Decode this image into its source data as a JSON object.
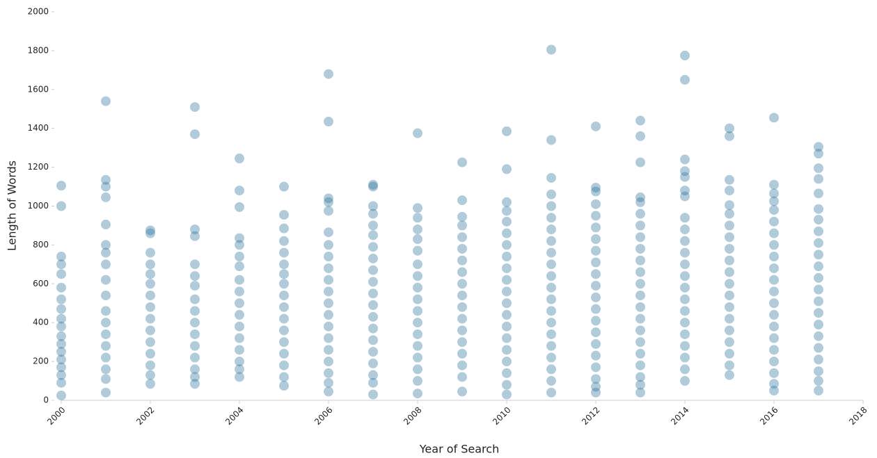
{
  "chart_data": {
    "type": "scatter",
    "x_label": "Year of Search",
    "y_label": "Length of Words",
    "color": "#1f6a96",
    "xlim": [
      2000,
      2018
    ],
    "xticks": [
      2000,
      2002,
      2004,
      2006,
      2008,
      2010,
      2012,
      2014,
      2016,
      2018
    ],
    "ylim": [
      0,
      2000
    ],
    "yticks": [
      0,
      200,
      400,
      600,
      800,
      1000,
      1200,
      1400,
      1600,
      1800,
      2000
    ],
    "grid": false,
    "x": [
      2000,
      2000,
      2000,
      2000,
      2000,
      2000,
      2000,
      2000,
      2000,
      2000,
      2000,
      2000,
      2000,
      2000,
      2000,
      2000,
      2000,
      2000,
      2001,
      2001,
      2001,
      2001,
      2001,
      2001,
      2001,
      2001,
      2001,
      2001,
      2001,
      2001,
      2001,
      2001,
      2001,
      2001,
      2001,
      2001,
      2002,
      2002,
      2002,
      2002,
      2002,
      2002,
      2002,
      2002,
      2002,
      2002,
      2002,
      2002,
      2002,
      2002,
      2002,
      2003,
      2003,
      2003,
      2003,
      2003,
      2003,
      2003,
      2003,
      2003,
      2003,
      2003,
      2003,
      2003,
      2003,
      2003,
      2003,
      2004,
      2004,
      2004,
      2004,
      2004,
      2004,
      2004,
      2004,
      2004,
      2004,
      2004,
      2004,
      2004,
      2004,
      2004,
      2004,
      2004,
      2005,
      2005,
      2005,
      2005,
      2005,
      2005,
      2005,
      2005,
      2005,
      2005,
      2005,
      2005,
      2005,
      2005,
      2005,
      2005,
      2005,
      2006,
      2006,
      2006,
      2006,
      2006,
      2006,
      2006,
      2006,
      2006,
      2006,
      2006,
      2006,
      2006,
      2006,
      2006,
      2006,
      2006,
      2006,
      2006,
      2006,
      2007,
      2007,
      2007,
      2007,
      2007,
      2007,
      2007,
      2007,
      2007,
      2007,
      2007,
      2007,
      2007,
      2007,
      2007,
      2007,
      2007,
      2007,
      2007,
      2007,
      2008,
      2008,
      2008,
      2008,
      2008,
      2008,
      2008,
      2008,
      2008,
      2008,
      2008,
      2008,
      2008,
      2008,
      2008,
      2008,
      2008,
      2008,
      2009,
      2009,
      2009,
      2009,
      2009,
      2009,
      2009,
      2009,
      2009,
      2009,
      2009,
      2009,
      2009,
      2009,
      2009,
      2009,
      2009,
      2009,
      2010,
      2010,
      2010,
      2010,
      2010,
      2010,
      2010,
      2010,
      2010,
      2010,
      2010,
      2010,
      2010,
      2010,
      2010,
      2010,
      2010,
      2010,
      2010,
      2010,
      2011,
      2011,
      2011,
      2011,
      2011,
      2011,
      2011,
      2011,
      2011,
      2011,
      2011,
      2011,
      2011,
      2011,
      2011,
      2011,
      2011,
      2011,
      2011,
      2011,
      2011,
      2012,
      2012,
      2012,
      2012,
      2012,
      2012,
      2012,
      2012,
      2012,
      2012,
      2012,
      2012,
      2012,
      2012,
      2012,
      2012,
      2012,
      2012,
      2012,
      2012,
      2012,
      2013,
      2013,
      2013,
      2013,
      2013,
      2013,
      2013,
      2013,
      2013,
      2013,
      2013,
      2013,
      2013,
      2013,
      2013,
      2013,
      2013,
      2013,
      2013,
      2013,
      2013,
      2013,
      2014,
      2014,
      2014,
      2014,
      2014,
      2014,
      2014,
      2014,
      2014,
      2014,
      2014,
      2014,
      2014,
      2014,
      2014,
      2014,
      2014,
      2014,
      2014,
      2014,
      2014,
      2014,
      2015,
      2015,
      2015,
      2015,
      2015,
      2015,
      2015,
      2015,
      2015,
      2015,
      2015,
      2015,
      2015,
      2015,
      2015,
      2015,
      2015,
      2015,
      2015,
      2015,
      2016,
      2016,
      2016,
      2016,
      2016,
      2016,
      2016,
      2016,
      2016,
      2016,
      2016,
      2016,
      2016,
      2016,
      2016,
      2016,
      2016,
      2016,
      2016,
      2016,
      2016,
      2017,
      2017,
      2017,
      2017,
      2017,
      2017,
      2017,
      2017,
      2017,
      2017,
      2017,
      2017,
      2017,
      2017,
      2017,
      2017,
      2017,
      2017,
      2017,
      2017,
      2017,
      2017
    ],
    "values": [
      1105,
      1000,
      740,
      700,
      650,
      580,
      520,
      470,
      420,
      380,
      330,
      290,
      250,
      210,
      170,
      130,
      90,
      25,
      1540,
      1135,
      1100,
      1045,
      905,
      800,
      760,
      700,
      620,
      540,
      460,
      400,
      340,
      280,
      220,
      160,
      110,
      40,
      875,
      860,
      760,
      700,
      650,
      600,
      540,
      480,
      420,
      360,
      300,
      240,
      180,
      130,
      85,
      1510,
      1370,
      880,
      845,
      700,
      640,
      590,
      520,
      460,
      400,
      340,
      280,
      220,
      160,
      120,
      85,
      1245,
      1080,
      995,
      835,
      800,
      740,
      690,
      620,
      560,
      500,
      440,
      380,
      320,
      260,
      200,
      160,
      120,
      1100,
      955,
      885,
      820,
      760,
      700,
      650,
      600,
      540,
      480,
      420,
      360,
      300,
      240,
      180,
      120,
      75,
      1680,
      1435,
      1040,
      1020,
      975,
      865,
      800,
      740,
      680,
      620,
      560,
      500,
      440,
      380,
      320,
      260,
      200,
      140,
      90,
      45,
      1110,
      1100,
      1000,
      960,
      900,
      850,
      790,
      730,
      670,
      610,
      550,
      490,
      430,
      370,
      310,
      250,
      190,
      130,
      90,
      30,
      1375,
      990,
      940,
      880,
      830,
      770,
      700,
      640,
      580,
      520,
      460,
      400,
      340,
      280,
      220,
      160,
      100,
      35,
      1225,
      1030,
      945,
      900,
      840,
      780,
      720,
      660,
      600,
      540,
      480,
      420,
      360,
      300,
      240,
      180,
      120,
      45,
      1385,
      1190,
      1020,
      975,
      920,
      860,
      800,
      740,
      680,
      620,
      560,
      500,
      440,
      380,
      320,
      260,
      200,
      140,
      80,
      30,
      1805,
      1340,
      1145,
      1060,
      1000,
      940,
      880,
      820,
      760,
      700,
      640,
      580,
      520,
      460,
      400,
      340,
      280,
      220,
      160,
      100,
      40,
      1410,
      1095,
      1075,
      1010,
      950,
      890,
      830,
      770,
      710,
      650,
      590,
      530,
      470,
      410,
      350,
      290,
      230,
      170,
      110,
      70,
      40,
      1440,
      1360,
      1225,
      1045,
      1020,
      960,
      900,
      840,
      780,
      720,
      660,
      600,
      540,
      480,
      420,
      360,
      300,
      240,
      180,
      120,
      80,
      40,
      1775,
      1650,
      1240,
      1180,
      1150,
      1080,
      1050,
      940,
      880,
      820,
      760,
      700,
      640,
      580,
      520,
      460,
      400,
      340,
      280,
      220,
      160,
      100,
      1400,
      1360,
      1135,
      1080,
      1005,
      960,
      900,
      840,
      780,
      720,
      660,
      600,
      540,
      480,
      420,
      360,
      300,
      240,
      180,
      130,
      1455,
      1110,
      1065,
      1025,
      980,
      920,
      860,
      800,
      740,
      680,
      620,
      560,
      500,
      440,
      380,
      320,
      260,
      200,
      140,
      85,
      50,
      1305,
      1270,
      1195,
      1140,
      1065,
      985,
      930,
      870,
      810,
      750,
      690,
      630,
      570,
      510,
      450,
      390,
      330,
      270,
      210,
      150,
      100,
      50
    ]
  }
}
